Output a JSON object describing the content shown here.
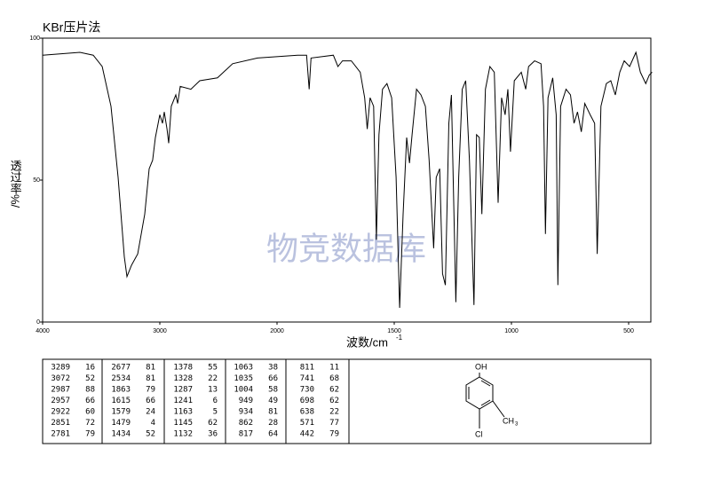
{
  "chart_data": {
    "type": "line",
    "title": "KBr压片法",
    "y_label": "透过率%/",
    "x_label": "波数/cm",
    "x_label_sup": "-1",
    "watermark": "物竞数据库",
    "color": "#000000",
    "xlim": [
      4000,
      400
    ],
    "ylim": [
      0,
      100
    ],
    "xticks": [
      4000,
      3000,
      2000,
      1500,
      1000,
      500
    ],
    "yticks": [
      0,
      50,
      100
    ],
    "x": [
      4000,
      3682,
      3568,
      3492,
      3417,
      3356,
      3303,
      3280,
      3242,
      3189,
      3129,
      3091,
      3061,
      3038,
      3000,
      2977,
      2962,
      2939,
      2924,
      2902,
      2864,
      2848,
      2826,
      2735,
      2659,
      2508,
      2379,
      2167,
      1912,
      1874,
      1863,
      1855,
      1760,
      1740,
      1721,
      1683,
      1645,
      1626,
      1615,
      1603,
      1588,
      1576,
      1565,
      1550,
      1531,
      1511,
      1492,
      1477,
      1462,
      1447,
      1435,
      1424,
      1405,
      1386,
      1367,
      1351,
      1332,
      1321,
      1306,
      1294,
      1282,
      1267,
      1256,
      1237,
      1225,
      1210,
      1195,
      1179,
      1160,
      1149,
      1137,
      1126,
      1111,
      1092,
      1073,
      1057,
      1042,
      1027,
      1015,
      1004,
      988,
      958,
      939,
      927,
      901,
      874,
      863,
      855,
      844,
      824,
      809,
      802,
      790,
      767,
      748,
      733,
      718,
      702,
      687,
      664,
      645,
      634,
      618,
      595,
      576,
      557,
      538,
      519,
      496,
      469,
      450,
      427,
      412,
      400
    ],
    "y": [
      94,
      95,
      94,
      90,
      76,
      51,
      23,
      16,
      20,
      24,
      38,
      54,
      57,
      65,
      73,
      70,
      74,
      68,
      63,
      76,
      80,
      77,
      83,
      82,
      85,
      86,
      91,
      93,
      94,
      94,
      82,
      93,
      94,
      90,
      92,
      92,
      88,
      79,
      68,
      79,
      76,
      29,
      66,
      82,
      84,
      79,
      51,
      5,
      38,
      65,
      56,
      66,
      82,
      80,
      76,
      57,
      26,
      51,
      54,
      17,
      13,
      70,
      80,
      7,
      51,
      82,
      85,
      57,
      6,
      66,
      65,
      38,
      82,
      90,
      88,
      42,
      79,
      73,
      82,
      60,
      85,
      88,
      82,
      90,
      92,
      91,
      76,
      31,
      79,
      86,
      73,
      13,
      76,
      82,
      80,
      70,
      74,
      67,
      77,
      73,
      70,
      24,
      76,
      84,
      85,
      80,
      88,
      92,
      90,
      95,
      88,
      84,
      87,
      88
    ]
  },
  "table": {
    "columns": [
      [
        [
          3289,
          16
        ],
        [
          3072,
          52
        ],
        [
          2987,
          88
        ],
        [
          2957,
          66
        ],
        [
          2922,
          60
        ],
        [
          2851,
          72
        ],
        [
          2781,
          79
        ]
      ],
      [
        [
          2677,
          81
        ],
        [
          2534,
          81
        ],
        [
          1863,
          79
        ],
        [
          1615,
          66
        ],
        [
          1579,
          24
        ],
        [
          1479,
          4
        ],
        [
          1434,
          52
        ]
      ],
      [
        [
          1378,
          55
        ],
        [
          1328,
          22
        ],
        [
          1287,
          13
        ],
        [
          1241,
          6
        ],
        [
          1163,
          5
        ],
        [
          1145,
          62
        ],
        [
          1132,
          36
        ]
      ],
      [
        [
          1063,
          38
        ],
        [
          1035,
          66
        ],
        [
          1004,
          58
        ],
        [
          949,
          49
        ],
        [
          934,
          81
        ],
        [
          862,
          28
        ],
        [
          817,
          64
        ]
      ],
      [
        [
          811,
          11
        ],
        [
          741,
          68
        ],
        [
          730,
          62
        ],
        [
          698,
          62
        ],
        [
          638,
          22
        ],
        [
          571,
          77
        ],
        [
          442,
          79
        ]
      ]
    ]
  },
  "structure": {
    "top": "OH",
    "bottom": "Cl",
    "right": "CH",
    "right_sub": "3"
  }
}
